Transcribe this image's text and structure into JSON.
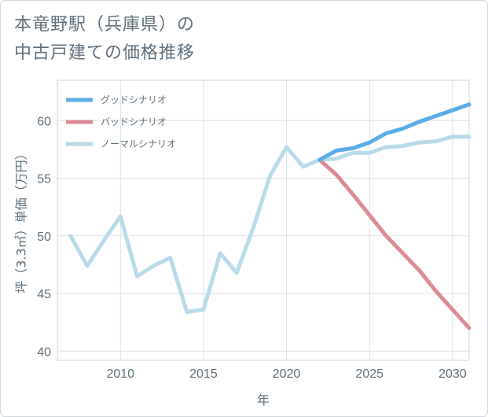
{
  "title_lines": [
    "本竜野駅（兵庫県）の",
    "中古戸建ての価格推移"
  ],
  "chart_data": {
    "type": "line",
    "title": "本竜野駅（兵庫県）の中古戸建ての価格推移",
    "xlabel": "年",
    "ylabel": "坪（3.3㎡）単価（万円）",
    "xlim": [
      2006.2,
      2031
    ],
    "ylim": [
      39.2,
      63.5
    ],
    "xticks": [
      2010,
      2015,
      2020,
      2025,
      2030
    ],
    "yticks": [
      40,
      45,
      50,
      55,
      60
    ],
    "grid": true,
    "legend_position": "top-left",
    "series": [
      {
        "name": "グッドシナリオ",
        "color": "#5aaee8",
        "x": [
          2022,
          2023,
          2024,
          2025,
          2026,
          2027,
          2028,
          2029,
          2030,
          2031
        ],
        "values": [
          56.6,
          57.4,
          57.6,
          58.1,
          58.9,
          59.3,
          59.9,
          60.4,
          60.9,
          61.4
        ]
      },
      {
        "name": "バッドシナリオ",
        "color": "#dc8a93",
        "x": [
          2022,
          2023,
          2024,
          2025,
          2026,
          2027,
          2028,
          2029,
          2030,
          2031
        ],
        "values": [
          56.6,
          55.3,
          53.6,
          51.8,
          50.0,
          48.5,
          47.0,
          45.2,
          43.6,
          42.0
        ]
      },
      {
        "name": "ノーマルシナリオ",
        "color": "#b9dbe9",
        "x": [
          2007,
          2008,
          2009,
          2010,
          2011,
          2012,
          2013,
          2014,
          2015,
          2016,
          2017,
          2018,
          2019,
          2020,
          2021,
          2022,
          2023,
          2024,
          2025,
          2026,
          2027,
          2028,
          2029,
          2030,
          2031
        ],
        "values": [
          50.0,
          47.4,
          49.6,
          51.7,
          46.5,
          47.4,
          48.1,
          43.4,
          43.6,
          48.5,
          46.8,
          50.7,
          55.2,
          57.7,
          56.0,
          56.6,
          56.7,
          57.2,
          57.2,
          57.7,
          57.8,
          58.1,
          58.2,
          58.6,
          58.6
        ]
      }
    ]
  }
}
